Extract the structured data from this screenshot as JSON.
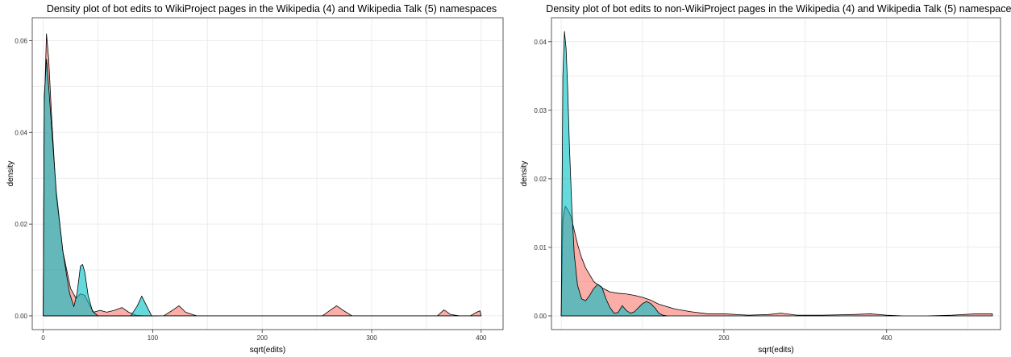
{
  "chart_data": [
    {
      "type": "area",
      "title": "Density plot of bot edits to WikiProject pages in the Wikipedia (4) and Wikipedia Talk (5) namespaces",
      "xlabel": "sqrt(edits)",
      "ylabel": "density",
      "xlim": [
        -10,
        420
      ],
      "ylim": [
        -0.003,
        0.065
      ],
      "xticks": [
        0,
        100,
        200,
        300,
        400
      ],
      "yticks": [
        0.0,
        0.02,
        0.04,
        0.06
      ],
      "ytick_labels": [
        "0.00",
        "0.02",
        "0.04",
        "0.06"
      ],
      "grid": true,
      "legend": "none",
      "series": [
        {
          "color": "#F8766D",
          "x": [
            0,
            1,
            3,
            5,
            8,
            12,
            18,
            25,
            30,
            34,
            38,
            42,
            46,
            52,
            58,
            65,
            72,
            78,
            85,
            92,
            100,
            110,
            118,
            124,
            130,
            140,
            200,
            255,
            262,
            268,
            274,
            282,
            350,
            360,
            366,
            372,
            380,
            390,
            396,
            399,
            400
          ],
          "y": [
            0,
            0.045,
            0.0615,
            0.056,
            0.042,
            0.026,
            0.014,
            0.006,
            0.0038,
            0.0048,
            0.0045,
            0.0025,
            0.0008,
            0.0012,
            0.0008,
            0.0012,
            0.0018,
            0.0008,
            0.0001,
            0,
            0,
            0,
            0.0012,
            0.0022,
            0.0008,
            0,
            0,
            0,
            0.0012,
            0.0022,
            0.0012,
            0,
            0,
            0,
            0.0013,
            0.0003,
            0,
            0,
            0.0008,
            0.0011,
            0
          ]
        },
        {
          "color": "#00BFC4",
          "x": [
            0,
            1,
            3,
            5,
            8,
            12,
            18,
            24,
            28,
            31,
            34,
            36,
            38,
            41,
            45,
            50,
            55,
            80,
            86,
            90,
            94,
            99,
            105
          ],
          "y": [
            0,
            0.048,
            0.056,
            0.05,
            0.04,
            0.027,
            0.014,
            0.005,
            0.002,
            0.005,
            0.0108,
            0.0112,
            0.0095,
            0.0045,
            0.001,
            0,
            0,
            0,
            0.0022,
            0.0043,
            0.0024,
            0,
            0
          ]
        }
      ]
    },
    {
      "type": "area",
      "title": "Density plot of bot edits to non-WikiProject pages in the Wikipedia (4) and Wikipedia Talk (5) namespaces",
      "xlabel": "sqrt(edits)",
      "ylabel": "density",
      "xlim": [
        -12,
        540
      ],
      "ylim": [
        -0.002,
        0.0435
      ],
      "xticks": [
        200,
        400
      ],
      "yticks": [
        0.0,
        0.01,
        0.02,
        0.03,
        0.04
      ],
      "ytick_labels": [
        "0.00",
        "0.01",
        "0.02",
        "0.03",
        "0.04"
      ],
      "grid": true,
      "legend": "none",
      "series": [
        {
          "color": "#F8766D",
          "x": [
            0,
            2,
            5,
            8,
            12,
            16,
            20,
            25,
            30,
            35,
            40,
            50,
            60,
            70,
            80,
            90,
            100,
            110,
            120,
            140,
            160,
            180,
            200,
            230,
            255,
            270,
            290,
            320,
            360,
            380,
            400,
            420,
            450,
            480,
            510,
            530
          ],
          "y": [
            0,
            0.014,
            0.016,
            0.0155,
            0.0145,
            0.0125,
            0.0105,
            0.0085,
            0.007,
            0.006,
            0.005,
            0.0041,
            0.0035,
            0.0033,
            0.0032,
            0.003,
            0.0027,
            0.0023,
            0.0017,
            0.001,
            0.0006,
            0.0003,
            0.0003,
            0.0001,
            0.0002,
            0.0004,
            0.0001,
            0.0001,
            0.0002,
            0.0003,
            0.0001,
            0,
            0,
            0.0001,
            0.0003,
            0.0003
          ]
        },
        {
          "color": "#00BFC4",
          "x": [
            0,
            2,
            4,
            6,
            8,
            10,
            13,
            16,
            20,
            25,
            30,
            35,
            40,
            45,
            50,
            55,
            60,
            65,
            70,
            75,
            80,
            85,
            90,
            95,
            100,
            105,
            110,
            115,
            120,
            125,
            130
          ],
          "y": [
            0,
            0.035,
            0.0415,
            0.039,
            0.033,
            0.025,
            0.016,
            0.009,
            0.0045,
            0.0025,
            0.0022,
            0.003,
            0.004,
            0.0046,
            0.0042,
            0.0025,
            0.0012,
            0.0004,
            0.0005,
            0.0015,
            0.0008,
            0.0004,
            0.0006,
            0.0012,
            0.0018,
            0.0021,
            0.0018,
            0.0012,
            0.0004,
            0.0001,
            0
          ]
        }
      ]
    }
  ],
  "style": {
    "fill_opacity": 0.6,
    "outline_color": "#000000"
  }
}
